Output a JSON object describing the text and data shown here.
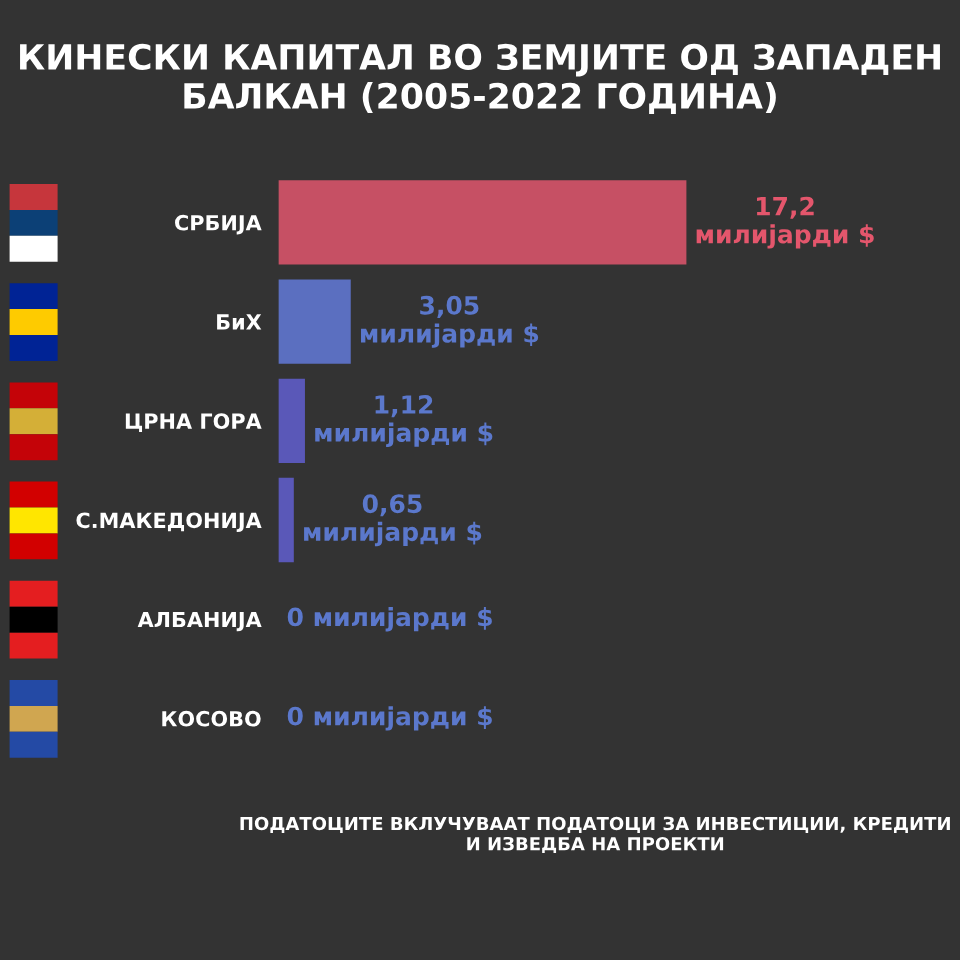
{
  "chart_data": {
    "type": "bar",
    "orientation": "horizontal",
    "title": "КИНЕСКИ КАПИТАЛ ВО ЗЕМЈИТЕ ОД ЗАПАДЕН БАЛКАН (2005-2022 ГОДИНА)",
    "categories": [
      "СРБИЈА",
      "БиХ",
      "ЦРНА ГОРА",
      "С.МАКЕДОНИЈА",
      "АЛБАНИЈА",
      "КОСОВО"
    ],
    "values": [
      17.2,
      3.05,
      1.12,
      0.65,
      0,
      0
    ],
    "colors": [
      "#c65064",
      "#5b6fc0",
      "#5a58b8",
      "#5a58b8",
      "#5a58b8",
      "#5a58b8"
    ],
    "value_labels": [
      "17,2\nмилијарди $",
      "3,05\nмилијарди $",
      "1,12\nмилијарди $",
      "0,65\nмилијарди $",
      "0 милијарди $",
      "0 милијарди $"
    ],
    "annotations": [
      "ПОДАТОЦИТЕ ВКЛУЧУВААТ ПОДАТОЦИ ЗА ИНВЕСТИЦИИ, КРЕДИТИ И ИЗВЕДБА НА ПРОЕКТИ"
    ]
  }
}
